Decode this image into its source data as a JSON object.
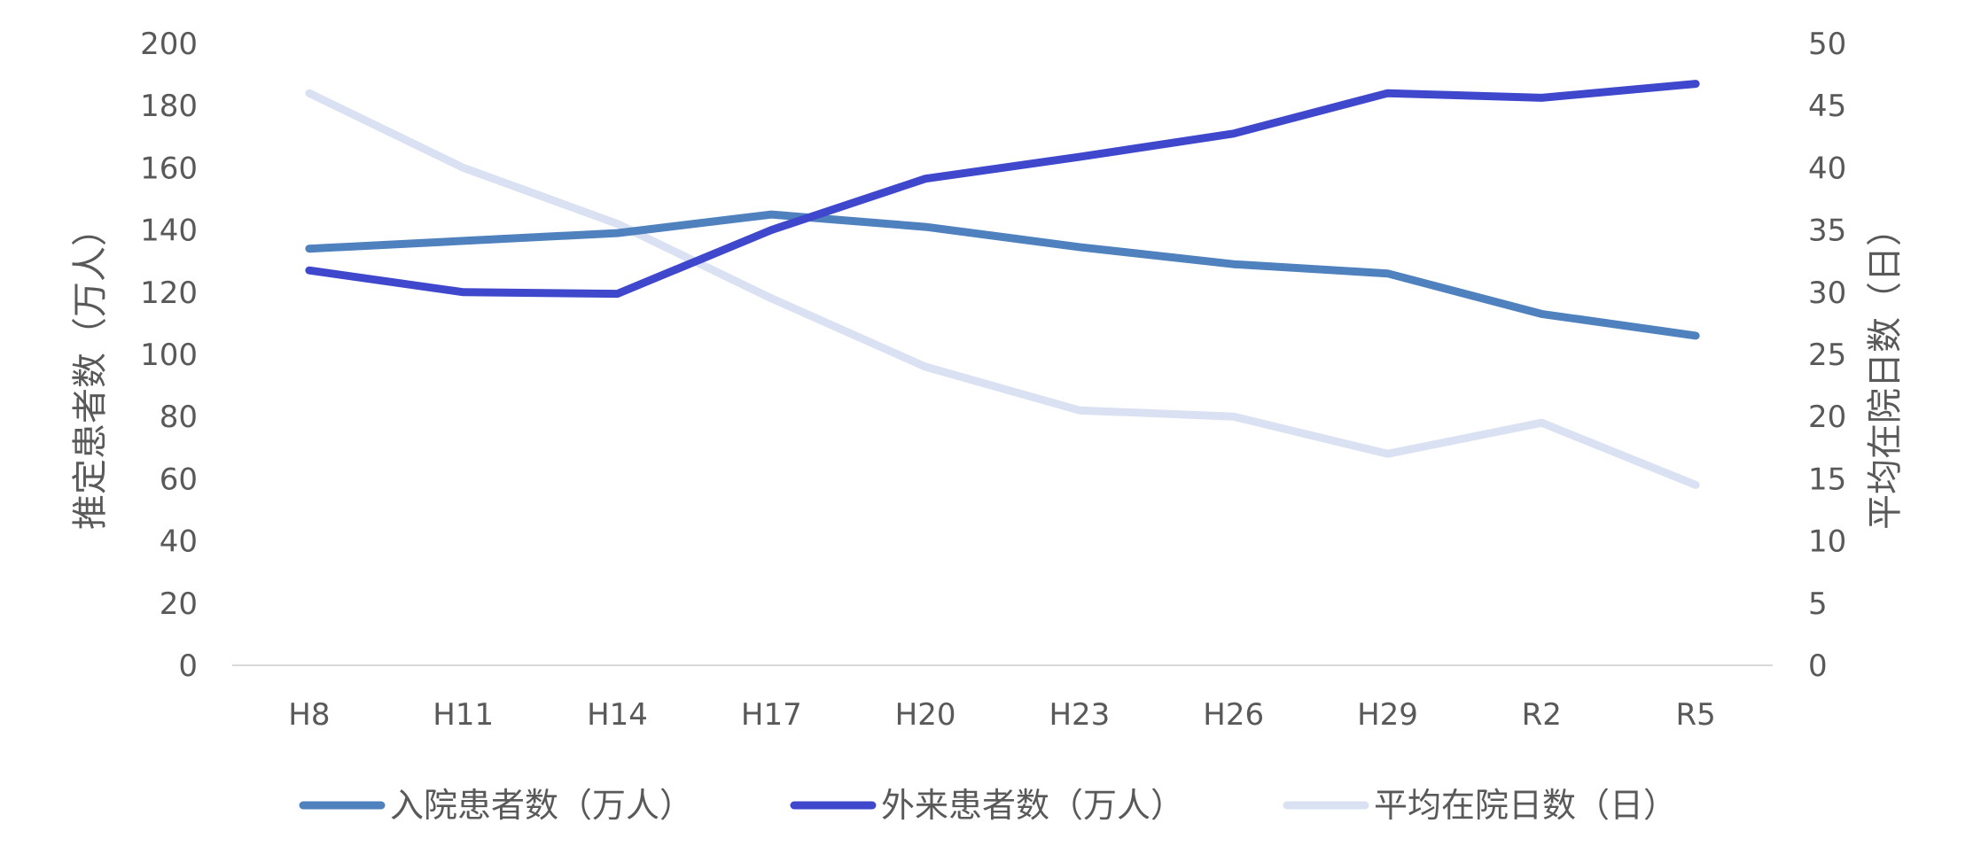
{
  "chart_data": {
    "type": "line",
    "categories": [
      "H8",
      "H11",
      "H14",
      "H17",
      "H20",
      "H23",
      "H26",
      "H29",
      "R2",
      "R5"
    ],
    "series": [
      {
        "name": "入院患者数（万人）",
        "axis": "left",
        "color": "#4E81BD",
        "values": [
          134,
          136.5,
          139,
          145,
          141,
          134.5,
          129,
          126,
          113,
          106
        ]
      },
      {
        "name": "外来患者数（万人）",
        "axis": "left",
        "color": "#3F48CC",
        "values": [
          127,
          120,
          119.5,
          140,
          156.5,
          163.5,
          171,
          184,
          182.5,
          187
        ]
      },
      {
        "name": "平均在院日数（日）",
        "axis": "right",
        "color": "#D9E1F2",
        "values": [
          46,
          40,
          35.5,
          29.5,
          24,
          20.5,
          20,
          17,
          19.5,
          14.5
        ]
      }
    ],
    "ylabel": "推定患者数（万人）",
    "y2label": "平均在院日数（日）",
    "ylim": [
      0,
      200
    ],
    "y2lim": [
      0,
      50
    ],
    "yticks": [
      "0",
      "20",
      "40",
      "60",
      "80",
      "100",
      "120",
      "140",
      "160",
      "180",
      "200"
    ],
    "y2ticks": [
      "0",
      "5",
      "10",
      "15",
      "20",
      "25",
      "30",
      "35",
      "40",
      "45",
      "50"
    ],
    "grid": false,
    "legend_position": "bottom"
  }
}
